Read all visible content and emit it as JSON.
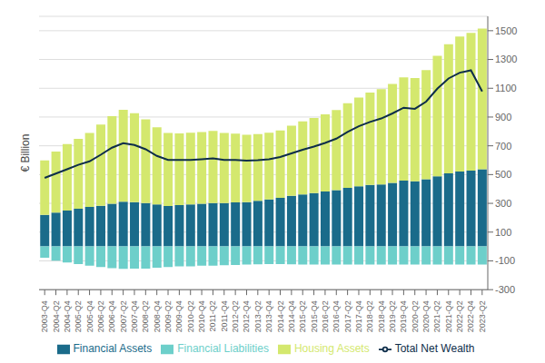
{
  "chart_data": {
    "type": "bar",
    "stacked": true,
    "ylabel": "€ Billion",
    "categories": [
      "2003-Q4",
      "2004-Q2",
      "2004-Q4",
      "2005-Q2",
      "2005-Q4",
      "2006-Q2",
      "2006-Q4",
      "2007-Q2",
      "2007-Q4",
      "2008-Q2",
      "2008-Q4",
      "2009-Q2",
      "2009-Q4",
      "2010-Q2",
      "2010-Q4",
      "2011-Q2",
      "2011-Q4",
      "2012-Q2",
      "2012-Q4",
      "2013-Q2",
      "2013-Q4",
      "2014-Q2",
      "2014-Q4",
      "2015-Q2",
      "2015-Q4",
      "2016-Q2",
      "2016-Q4",
      "2017-Q2",
      "2017-Q4",
      "2018-Q2",
      "2018-Q4",
      "2019-Q2",
      "2019-Q4",
      "2020-Q2",
      "2020-Q4",
      "2021-Q2",
      "2021-Q4",
      "2022-Q2",
      "2022-Q4",
      "2023-Q2"
    ],
    "series": [
      {
        "name": "Financial Assets",
        "type": "bar",
        "color": "#1a6b8a",
        "values": [
          220,
          235,
          250,
          262,
          275,
          283,
          298,
          312,
          308,
          302,
          292,
          282,
          288,
          293,
          298,
          302,
          302,
          307,
          308,
          318,
          328,
          338,
          352,
          362,
          372,
          382,
          392,
          408,
          418,
          428,
          432,
          442,
          458,
          453,
          468,
          488,
          508,
          522,
          527,
          537
        ]
      },
      {
        "name": "Financial Liabilities",
        "type": "bar",
        "color": "#6dcfca",
        "values": [
          -78,
          -98,
          -112,
          -122,
          -133,
          -143,
          -150,
          -155,
          -154,
          -154,
          -148,
          -143,
          -138,
          -138,
          -133,
          -133,
          -130,
          -128,
          -126,
          -124,
          -123,
          -123,
          -124,
          -125,
          -126,
          -126,
          -126,
          -126,
          -126,
          -126,
          -125,
          -125,
          -125,
          -125,
          -125,
          -125,
          -125,
          -125,
          -125,
          -125
        ]
      },
      {
        "name": "Housing Assets",
        "type": "bar",
        "color": "#d4e86e",
        "values": [
          378,
          425,
          462,
          487,
          515,
          565,
          608,
          638,
          618,
          582,
          537,
          508,
          498,
          498,
          498,
          502,
          488,
          478,
          468,
          463,
          463,
          468,
          488,
          508,
          522,
          537,
          557,
          588,
          618,
          642,
          662,
          688,
          718,
          718,
          758,
          838,
          898,
          938,
          958,
          978
        ]
      },
      {
        "name": "Total Net Wealth",
        "type": "line",
        "color": "#0d2d4a",
        "values": [
          477,
          507,
          537,
          568,
          592,
          638,
          687,
          718,
          706,
          676,
          630,
          602,
          602,
          602,
          607,
          612,
          602,
          602,
          597,
          600,
          607,
          622,
          647,
          673,
          695,
          720,
          750,
          797,
          836,
          866,
          890,
          925,
          965,
          957,
          1007,
          1097,
          1168,
          1208,
          1225,
          1078
        ]
      }
    ],
    "ylim": [
      -300,
      1600
    ],
    "yticks": [
      -300,
      -100,
      100,
      300,
      500,
      700,
      900,
      1100,
      1300,
      1500
    ],
    "grid": true,
    "legend": "bottom"
  }
}
